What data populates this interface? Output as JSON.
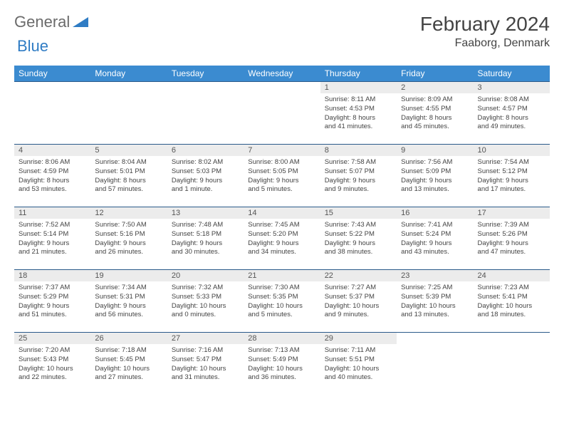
{
  "brand": {
    "part1": "General",
    "part2": "Blue"
  },
  "title": "February 2024",
  "location": "Faaborg, Denmark",
  "colors": {
    "header_bg": "#3b8bd0",
    "header_text": "#ffffff",
    "daynum_bg": "#ececec",
    "row_border": "#2a5a8a",
    "brand_gray": "#6b6b6b",
    "brand_blue": "#2f7cc4"
  },
  "day_headers": [
    "Sunday",
    "Monday",
    "Tuesday",
    "Wednesday",
    "Thursday",
    "Friday",
    "Saturday"
  ],
  "weeks": [
    [
      {
        "empty": true
      },
      {
        "empty": true
      },
      {
        "empty": true
      },
      {
        "empty": true
      },
      {
        "n": "1",
        "sr": "Sunrise: 8:11 AM",
        "ss": "Sunset: 4:53 PM",
        "dl1": "Daylight: 8 hours",
        "dl2": "and 41 minutes."
      },
      {
        "n": "2",
        "sr": "Sunrise: 8:09 AM",
        "ss": "Sunset: 4:55 PM",
        "dl1": "Daylight: 8 hours",
        "dl2": "and 45 minutes."
      },
      {
        "n": "3",
        "sr": "Sunrise: 8:08 AM",
        "ss": "Sunset: 4:57 PM",
        "dl1": "Daylight: 8 hours",
        "dl2": "and 49 minutes."
      }
    ],
    [
      {
        "n": "4",
        "sr": "Sunrise: 8:06 AM",
        "ss": "Sunset: 4:59 PM",
        "dl1": "Daylight: 8 hours",
        "dl2": "and 53 minutes."
      },
      {
        "n": "5",
        "sr": "Sunrise: 8:04 AM",
        "ss": "Sunset: 5:01 PM",
        "dl1": "Daylight: 8 hours",
        "dl2": "and 57 minutes."
      },
      {
        "n": "6",
        "sr": "Sunrise: 8:02 AM",
        "ss": "Sunset: 5:03 PM",
        "dl1": "Daylight: 9 hours",
        "dl2": "and 1 minute."
      },
      {
        "n": "7",
        "sr": "Sunrise: 8:00 AM",
        "ss": "Sunset: 5:05 PM",
        "dl1": "Daylight: 9 hours",
        "dl2": "and 5 minutes."
      },
      {
        "n": "8",
        "sr": "Sunrise: 7:58 AM",
        "ss": "Sunset: 5:07 PM",
        "dl1": "Daylight: 9 hours",
        "dl2": "and 9 minutes."
      },
      {
        "n": "9",
        "sr": "Sunrise: 7:56 AM",
        "ss": "Sunset: 5:09 PM",
        "dl1": "Daylight: 9 hours",
        "dl2": "and 13 minutes."
      },
      {
        "n": "10",
        "sr": "Sunrise: 7:54 AM",
        "ss": "Sunset: 5:12 PM",
        "dl1": "Daylight: 9 hours",
        "dl2": "and 17 minutes."
      }
    ],
    [
      {
        "n": "11",
        "sr": "Sunrise: 7:52 AM",
        "ss": "Sunset: 5:14 PM",
        "dl1": "Daylight: 9 hours",
        "dl2": "and 21 minutes."
      },
      {
        "n": "12",
        "sr": "Sunrise: 7:50 AM",
        "ss": "Sunset: 5:16 PM",
        "dl1": "Daylight: 9 hours",
        "dl2": "and 26 minutes."
      },
      {
        "n": "13",
        "sr": "Sunrise: 7:48 AM",
        "ss": "Sunset: 5:18 PM",
        "dl1": "Daylight: 9 hours",
        "dl2": "and 30 minutes."
      },
      {
        "n": "14",
        "sr": "Sunrise: 7:45 AM",
        "ss": "Sunset: 5:20 PM",
        "dl1": "Daylight: 9 hours",
        "dl2": "and 34 minutes."
      },
      {
        "n": "15",
        "sr": "Sunrise: 7:43 AM",
        "ss": "Sunset: 5:22 PM",
        "dl1": "Daylight: 9 hours",
        "dl2": "and 38 minutes."
      },
      {
        "n": "16",
        "sr": "Sunrise: 7:41 AM",
        "ss": "Sunset: 5:24 PM",
        "dl1": "Daylight: 9 hours",
        "dl2": "and 43 minutes."
      },
      {
        "n": "17",
        "sr": "Sunrise: 7:39 AM",
        "ss": "Sunset: 5:26 PM",
        "dl1": "Daylight: 9 hours",
        "dl2": "and 47 minutes."
      }
    ],
    [
      {
        "n": "18",
        "sr": "Sunrise: 7:37 AM",
        "ss": "Sunset: 5:29 PM",
        "dl1": "Daylight: 9 hours",
        "dl2": "and 51 minutes."
      },
      {
        "n": "19",
        "sr": "Sunrise: 7:34 AM",
        "ss": "Sunset: 5:31 PM",
        "dl1": "Daylight: 9 hours",
        "dl2": "and 56 minutes."
      },
      {
        "n": "20",
        "sr": "Sunrise: 7:32 AM",
        "ss": "Sunset: 5:33 PM",
        "dl1": "Daylight: 10 hours",
        "dl2": "and 0 minutes."
      },
      {
        "n": "21",
        "sr": "Sunrise: 7:30 AM",
        "ss": "Sunset: 5:35 PM",
        "dl1": "Daylight: 10 hours",
        "dl2": "and 5 minutes."
      },
      {
        "n": "22",
        "sr": "Sunrise: 7:27 AM",
        "ss": "Sunset: 5:37 PM",
        "dl1": "Daylight: 10 hours",
        "dl2": "and 9 minutes."
      },
      {
        "n": "23",
        "sr": "Sunrise: 7:25 AM",
        "ss": "Sunset: 5:39 PM",
        "dl1": "Daylight: 10 hours",
        "dl2": "and 13 minutes."
      },
      {
        "n": "24",
        "sr": "Sunrise: 7:23 AM",
        "ss": "Sunset: 5:41 PM",
        "dl1": "Daylight: 10 hours",
        "dl2": "and 18 minutes."
      }
    ],
    [
      {
        "n": "25",
        "sr": "Sunrise: 7:20 AM",
        "ss": "Sunset: 5:43 PM",
        "dl1": "Daylight: 10 hours",
        "dl2": "and 22 minutes."
      },
      {
        "n": "26",
        "sr": "Sunrise: 7:18 AM",
        "ss": "Sunset: 5:45 PM",
        "dl1": "Daylight: 10 hours",
        "dl2": "and 27 minutes."
      },
      {
        "n": "27",
        "sr": "Sunrise: 7:16 AM",
        "ss": "Sunset: 5:47 PM",
        "dl1": "Daylight: 10 hours",
        "dl2": "and 31 minutes."
      },
      {
        "n": "28",
        "sr": "Sunrise: 7:13 AM",
        "ss": "Sunset: 5:49 PM",
        "dl1": "Daylight: 10 hours",
        "dl2": "and 36 minutes."
      },
      {
        "n": "29",
        "sr": "Sunrise: 7:11 AM",
        "ss": "Sunset: 5:51 PM",
        "dl1": "Daylight: 10 hours",
        "dl2": "and 40 minutes."
      },
      {
        "empty": true
      },
      {
        "empty": true
      }
    ]
  ]
}
